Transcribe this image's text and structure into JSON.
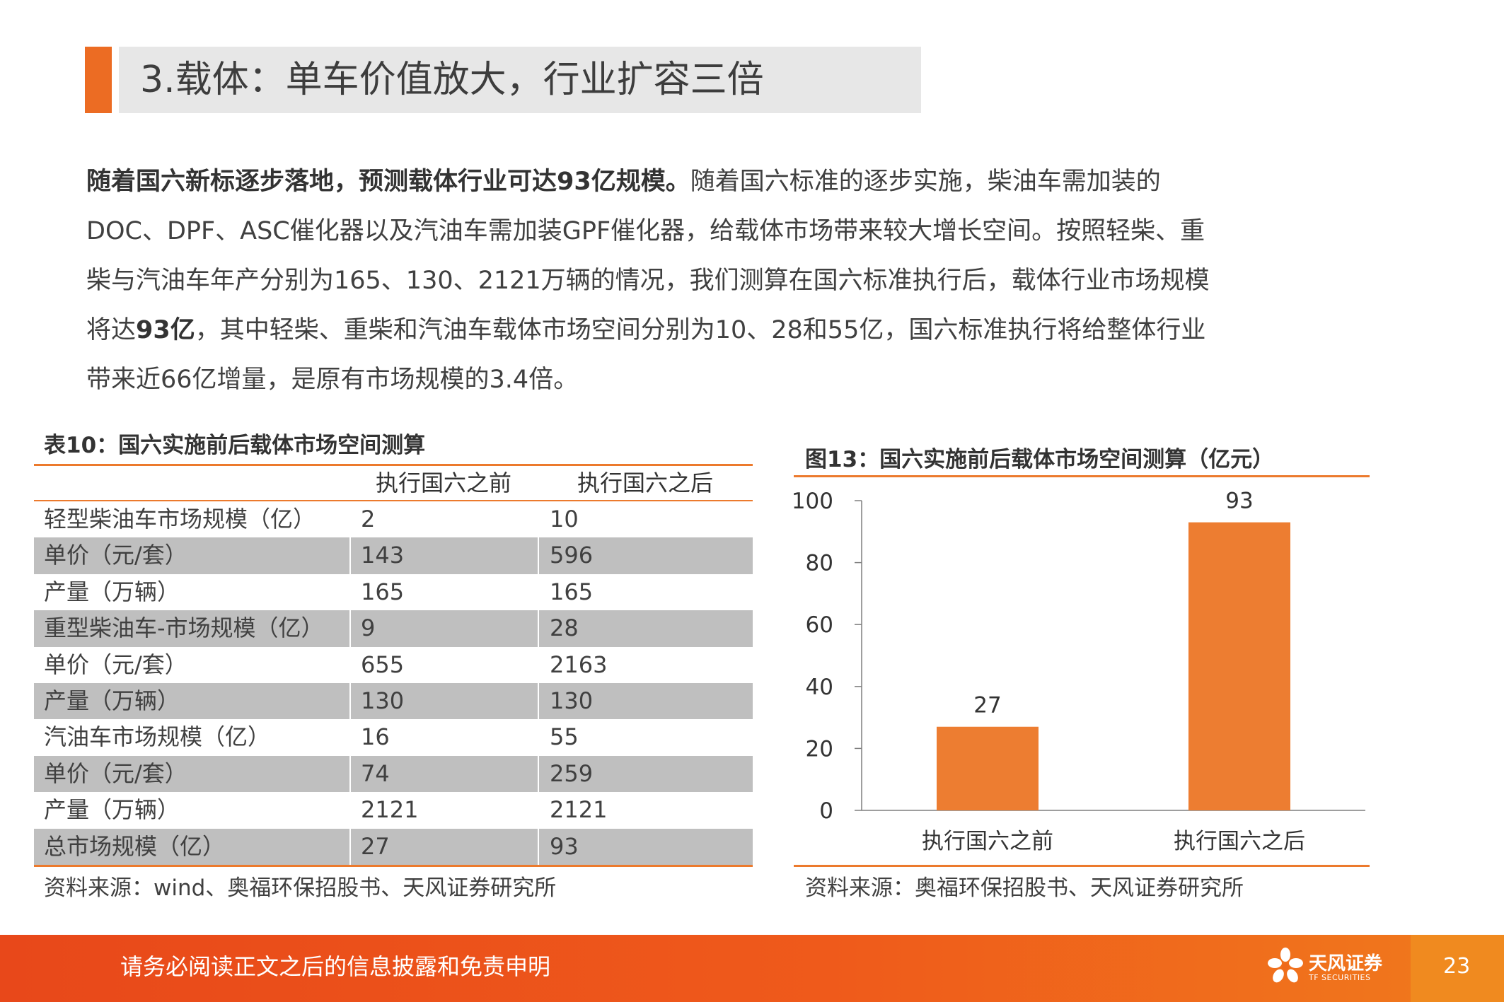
{
  "slide": {
    "title": "3.载体：单车价值放大，行业扩容三倍",
    "paragraph": {
      "bold_lead": "随着国六新标逐步落地，预测载体行业可达93亿规模。",
      "line1_rest": "随着国六标准的逐步实施，柴油车需加装的",
      "line2": "DOC、DPF、ASC催化器以及汽油车需加装GPF催化器，给载体市场带来较大增长空间。按照轻柴、重",
      "line3": "柴与汽油车年产分别为165、130、2121万辆的情况，我们测算在国六标准执行后，载体行业市场规模",
      "line4_a": "将达",
      "line4_bold": "93亿",
      "line4_b": "，其中轻柴、重柴和汽油车载体市场空间分别为10、28和55亿，国六标准执行将给整体行业",
      "line5": "带来近66亿增量，是原有市场规模的3.4倍。"
    }
  },
  "table": {
    "title": "表10：国六实施前后载体市场空间测算",
    "headers": [
      "",
      "执行国六之前",
      "执行国六之后"
    ],
    "rows": [
      {
        "label": "轻型柴油车市场规模（亿）",
        "before": "2",
        "after": "10",
        "shaded": false
      },
      {
        "label": "单价（元/套）",
        "before": "143",
        "after": "596",
        "shaded": true
      },
      {
        "label": "产量（万辆）",
        "before": "165",
        "after": "165",
        "shaded": false
      },
      {
        "label": "重型柴油车-市场规模（亿）",
        "before": "9",
        "after": "28",
        "shaded": true
      },
      {
        "label": "单价（元/套）",
        "before": "655",
        "after": "2163",
        "shaded": false
      },
      {
        "label": "产量（万辆）",
        "before": "130",
        "after": "130",
        "shaded": true
      },
      {
        "label": "汽油车市场规模（亿）",
        "before": "16",
        "after": "55",
        "shaded": false
      },
      {
        "label": "单价（元/套）",
        "before": "74",
        "after": "259",
        "shaded": true
      },
      {
        "label": "产量（万辆）",
        "before": "2121",
        "after": "2121",
        "shaded": false
      },
      {
        "label": "总市场规模（亿）",
        "before": "27",
        "after": "93",
        "shaded": true
      }
    ],
    "source": "资料来源：wind、奥福环保招股书、天风证券研究所"
  },
  "chart": {
    "title": "图13：国六实施前后载体市场空间测算（亿元）",
    "source": "资料来源：奥福环保招股书、天风证券研究所"
  },
  "chart_data": {
    "type": "bar",
    "title": "图13：国六实施前后载体市场空间测算（亿元）",
    "categories": [
      "执行国六之前",
      "执行国六之后"
    ],
    "values": [
      27,
      93
    ],
    "data_labels": [
      "27",
      "93"
    ],
    "ylim": [
      0,
      100
    ],
    "yticks": [
      0,
      20,
      40,
      60,
      80,
      100
    ],
    "xlabel": "",
    "ylabel": "",
    "grid": false,
    "legend": "none",
    "bar_color": "#ed7d31"
  },
  "footer": {
    "disclaimer": "请务必阅读正文之后的信息披露和免责申明",
    "logo_cn": "天风证券",
    "logo_en": "TF SECURITIES",
    "page_number": "23"
  },
  "colors": {
    "accent": "#ec6c23",
    "title_band": "#e7e7e7",
    "row_shade": "#bfbfbf",
    "footer": "#ef5a1b"
  }
}
